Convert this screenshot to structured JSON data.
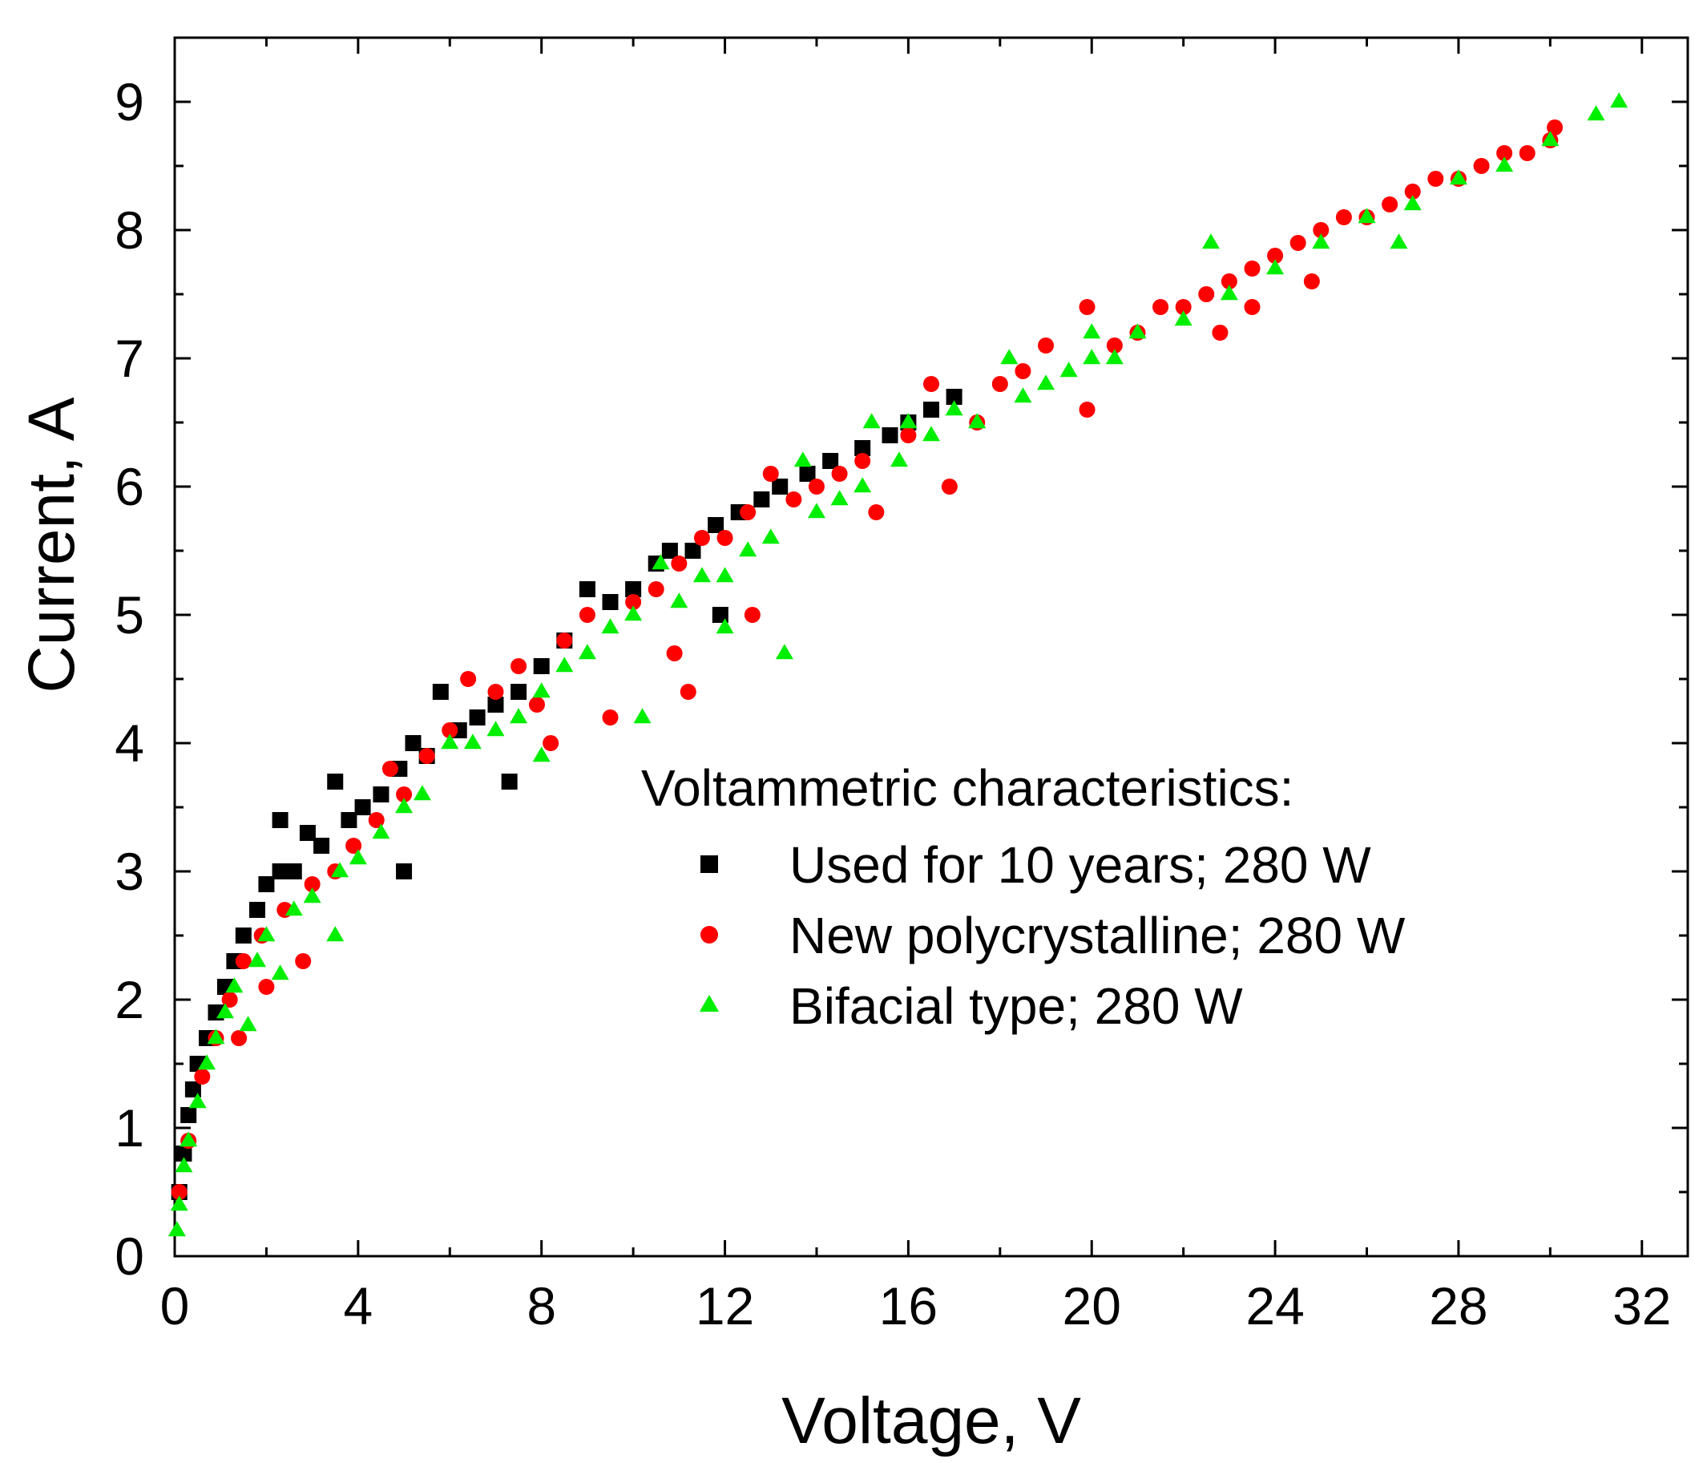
{
  "chart_data": {
    "type": "scatter",
    "title": "",
    "xlabel": "Voltage, V",
    "ylabel": "Current, A",
    "xlim": [
      0,
      33
    ],
    "ylim": [
      0,
      9.5
    ],
    "xticks": [
      0,
      4,
      8,
      12,
      16,
      20,
      24,
      28,
      32
    ],
    "yticks": [
      0,
      1,
      2,
      3,
      4,
      5,
      6,
      7,
      8,
      9
    ],
    "xtick_labels": [
      "0",
      "4",
      "8",
      "12",
      "16",
      "20",
      "24",
      "28",
      "32"
    ],
    "ytick_labels": [
      "0",
      "1",
      "2",
      "3",
      "4",
      "5",
      "6",
      "7",
      "8",
      "9"
    ],
    "grid": false,
    "legend": {
      "title": "Voltammetric characteristics:",
      "placement": "lower-right"
    },
    "series": [
      {
        "name": "Used for 10 years; 280 W",
        "marker": "square",
        "color": "#000000",
        "points": [
          [
            0.1,
            0.5
          ],
          [
            0.2,
            0.8
          ],
          [
            0.3,
            1.1
          ],
          [
            0.4,
            1.3
          ],
          [
            0.5,
            1.5
          ],
          [
            0.7,
            1.7
          ],
          [
            0.9,
            1.9
          ],
          [
            1.1,
            2.1
          ],
          [
            1.3,
            2.3
          ],
          [
            1.5,
            2.5
          ],
          [
            1.8,
            2.7
          ],
          [
            2.0,
            2.9
          ],
          [
            2.3,
            3.0
          ],
          [
            2.3,
            3.4
          ],
          [
            2.6,
            3.0
          ],
          [
            2.9,
            3.3
          ],
          [
            3.2,
            3.2
          ],
          [
            3.5,
            3.7
          ],
          [
            3.8,
            3.4
          ],
          [
            4.1,
            3.5
          ],
          [
            4.5,
            3.6
          ],
          [
            4.9,
            3.8
          ],
          [
            5.0,
            3.0
          ],
          [
            5.2,
            4.0
          ],
          [
            5.5,
            3.9
          ],
          [
            5.8,
            4.4
          ],
          [
            6.2,
            4.1
          ],
          [
            6.6,
            4.2
          ],
          [
            7.0,
            4.3
          ],
          [
            7.3,
            3.7
          ],
          [
            7.5,
            4.4
          ],
          [
            8.0,
            4.6
          ],
          [
            8.5,
            4.8
          ],
          [
            9.0,
            5.2
          ],
          [
            9.5,
            5.1
          ],
          [
            10.0,
            5.2
          ],
          [
            10.5,
            5.4
          ],
          [
            10.8,
            5.5
          ],
          [
            11.3,
            5.5
          ],
          [
            11.8,
            5.7
          ],
          [
            12.3,
            5.8
          ],
          [
            11.9,
            5.0
          ],
          [
            12.8,
            5.9
          ],
          [
            13.2,
            6.0
          ],
          [
            13.8,
            6.1
          ],
          [
            14.3,
            6.2
          ],
          [
            15.0,
            6.3
          ],
          [
            15.6,
            6.4
          ],
          [
            16.0,
            6.5
          ],
          [
            16.5,
            6.6
          ],
          [
            17.0,
            6.7
          ]
        ]
      },
      {
        "name": "New polycrystalline; 280 W",
        "marker": "circle",
        "color": "#ff0000",
        "points": [
          [
            0.1,
            0.5
          ],
          [
            0.3,
            0.9
          ],
          [
            0.6,
            1.4
          ],
          [
            0.9,
            1.7
          ],
          [
            1.2,
            2.0
          ],
          [
            1.4,
            1.7
          ],
          [
            1.5,
            2.3
          ],
          [
            1.9,
            2.5
          ],
          [
            2.0,
            2.1
          ],
          [
            2.4,
            2.7
          ],
          [
            2.8,
            2.3
          ],
          [
            3.0,
            2.9
          ],
          [
            3.5,
            3.0
          ],
          [
            3.9,
            3.2
          ],
          [
            4.4,
            3.4
          ],
          [
            4.7,
            3.8
          ],
          [
            5.0,
            3.6
          ],
          [
            5.5,
            3.9
          ],
          [
            6.0,
            4.1
          ],
          [
            6.4,
            4.5
          ],
          [
            7.0,
            4.4
          ],
          [
            7.5,
            4.6
          ],
          [
            7.9,
            4.3
          ],
          [
            8.2,
            4.0
          ],
          [
            8.5,
            4.8
          ],
          [
            9.0,
            5.0
          ],
          [
            9.5,
            4.2
          ],
          [
            10.0,
            5.1
          ],
          [
            10.5,
            5.2
          ],
          [
            11.0,
            5.4
          ],
          [
            10.9,
            4.7
          ],
          [
            11.2,
            4.4
          ],
          [
            11.5,
            5.6
          ],
          [
            12.0,
            5.6
          ],
          [
            12.5,
            5.8
          ],
          [
            12.6,
            5.0
          ],
          [
            13.0,
            6.1
          ],
          [
            13.5,
            5.9
          ],
          [
            14.0,
            6.0
          ],
          [
            14.5,
            6.1
          ],
          [
            15.0,
            6.2
          ],
          [
            15.3,
            5.8
          ],
          [
            16.0,
            6.4
          ],
          [
            16.5,
            6.8
          ],
          [
            16.9,
            6.0
          ],
          [
            17.5,
            6.5
          ],
          [
            18.0,
            6.8
          ],
          [
            18.5,
            6.9
          ],
          [
            19.0,
            7.1
          ],
          [
            19.9,
            7.4
          ],
          [
            19.9,
            6.6
          ],
          [
            20.5,
            7.1
          ],
          [
            21.0,
            7.2
          ],
          [
            21.5,
            7.4
          ],
          [
            22.0,
            7.4
          ],
          [
            22.5,
            7.5
          ],
          [
            22.8,
            7.2
          ],
          [
            23.0,
            7.6
          ],
          [
            23.5,
            7.7
          ],
          [
            23.5,
            7.4
          ],
          [
            24.0,
            7.8
          ],
          [
            24.5,
            7.9
          ],
          [
            24.8,
            7.6
          ],
          [
            25.0,
            8.0
          ],
          [
            25.5,
            8.1
          ],
          [
            26.0,
            8.1
          ],
          [
            26.5,
            8.2
          ],
          [
            27.0,
            8.3
          ],
          [
            27.5,
            8.4
          ],
          [
            28.0,
            8.4
          ],
          [
            28.5,
            8.5
          ],
          [
            29.0,
            8.6
          ],
          [
            29.5,
            8.6
          ],
          [
            30.0,
            8.7
          ],
          [
            30.1,
            8.8
          ]
        ]
      },
      {
        "name": "Bifacial type; 280 W",
        "marker": "triangle",
        "color": "#00ee00",
        "points": [
          [
            0.05,
            0.2
          ],
          [
            0.1,
            0.4
          ],
          [
            0.2,
            0.7
          ],
          [
            0.3,
            0.9
          ],
          [
            0.5,
            1.2
          ],
          [
            0.7,
            1.5
          ],
          [
            0.9,
            1.7
          ],
          [
            1.1,
            1.9
          ],
          [
            1.3,
            2.1
          ],
          [
            1.6,
            1.8
          ],
          [
            1.8,
            2.3
          ],
          [
            2.0,
            2.5
          ],
          [
            2.3,
            2.2
          ],
          [
            2.6,
            2.7
          ],
          [
            3.0,
            2.8
          ],
          [
            3.5,
            2.5
          ],
          [
            3.6,
            3.0
          ],
          [
            4.0,
            3.1
          ],
          [
            4.5,
            3.3
          ],
          [
            5.0,
            3.5
          ],
          [
            5.4,
            3.6
          ],
          [
            6.0,
            4.0
          ],
          [
            6.5,
            4.0
          ],
          [
            7.0,
            4.1
          ],
          [
            7.5,
            4.2
          ],
          [
            8.0,
            4.4
          ],
          [
            8.0,
            3.9
          ],
          [
            8.5,
            4.6
          ],
          [
            9.0,
            4.7
          ],
          [
            9.5,
            4.9
          ],
          [
            10.0,
            5.0
          ],
          [
            10.2,
            4.2
          ],
          [
            10.6,
            5.4
          ],
          [
            11.0,
            5.1
          ],
          [
            11.5,
            5.3
          ],
          [
            12.0,
            5.3
          ],
          [
            12.0,
            4.9
          ],
          [
            12.5,
            5.5
          ],
          [
            13.0,
            5.6
          ],
          [
            13.3,
            4.7
          ],
          [
            13.7,
            6.2
          ],
          [
            14.0,
            5.8
          ],
          [
            14.5,
            5.9
          ],
          [
            15.0,
            6.0
          ],
          [
            15.2,
            6.5
          ],
          [
            15.8,
            6.2
          ],
          [
            16.0,
            6.5
          ],
          [
            16.5,
            6.4
          ],
          [
            17.0,
            6.6
          ],
          [
            17.5,
            6.5
          ],
          [
            18.2,
            7.0
          ],
          [
            18.5,
            6.7
          ],
          [
            19.0,
            6.8
          ],
          [
            19.5,
            6.9
          ],
          [
            20.0,
            7.0
          ],
          [
            20.0,
            7.2
          ],
          [
            20.5,
            7.0
          ],
          [
            21.0,
            7.2
          ],
          [
            22.0,
            7.3
          ],
          [
            22.6,
            7.9
          ],
          [
            23.0,
            7.5
          ],
          [
            24.0,
            7.7
          ],
          [
            25.0,
            7.9
          ],
          [
            26.0,
            8.1
          ],
          [
            26.7,
            7.9
          ],
          [
            27.0,
            8.2
          ],
          [
            28.0,
            8.4
          ],
          [
            29.0,
            8.5
          ],
          [
            30.0,
            8.7
          ],
          [
            31.0,
            8.9
          ],
          [
            31.5,
            9.0
          ]
        ]
      }
    ]
  }
}
